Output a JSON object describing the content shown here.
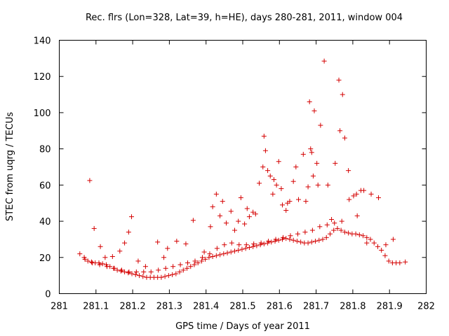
{
  "chart_data": {
    "type": "scatter",
    "title": "Rec. flrs (Lon=328, Lat=39, h=HE), days 280-281, 2011, window 004",
    "xlabel": "GPS time / Days of year 2011",
    "ylabel": "STEC from uqrg / TECUs",
    "xlim": [
      281,
      282
    ],
    "ylim": [
      0,
      140
    ],
    "xticks": [
      "281",
      "281.1",
      "281.2",
      "281.3",
      "281.4",
      "281.5",
      "281.6",
      "281.7",
      "281.8",
      "281.9",
      "282"
    ],
    "yticks": [
      "0",
      "20",
      "40",
      "60",
      "80",
      "100",
      "120",
      "140"
    ],
    "grid": false,
    "legend": "none",
    "marker": "+",
    "color": "#d40000",
    "series": [
      {
        "x": [
          281.056,
          281.068,
          281.078,
          281.088,
          281.098,
          281.108,
          281.118,
          281.128,
          281.138,
          281.148,
          281.158,
          281.168,
          281.178,
          281.188,
          281.198,
          281.208,
          281.218,
          281.228,
          281.238,
          281.248,
          281.258,
          281.268,
          281.278,
          281.288,
          281.298,
          281.308,
          281.318,
          281.328,
          281.338,
          281.348,
          281.358,
          281.368,
          281.378,
          281.388,
          281.398,
          281.408,
          281.418,
          281.428,
          281.438,
          281.448,
          281.458,
          281.468,
          281.478,
          281.488,
          281.498,
          281.508,
          281.518,
          281.528,
          281.538,
          281.548,
          281.558,
          281.568,
          281.578,
          281.588,
          281.598,
          281.608,
          281.618,
          281.628,
          281.638,
          281.648,
          281.658,
          281.668,
          281.678,
          281.688,
          281.698,
          281.708,
          281.718,
          281.728,
          281.738,
          281.748,
          281.758,
          281.768,
          281.778,
          281.788,
          281.798,
          281.808,
          281.818,
          281.828,
          281.838,
          281.848,
          281.858,
          281.868,
          281.878,
          281.888,
          281.898,
          281.908,
          281.918,
          281.928,
          281.943
        ],
        "y": [
          22,
          20,
          18,
          17.5,
          17,
          17,
          16.5,
          16,
          15,
          14,
          13,
          12.5,
          12,
          11.5,
          11,
          10.5,
          10,
          9.5,
          9,
          9,
          9,
          9,
          9,
          9.5,
          10,
          10.5,
          11,
          12,
          13,
          14,
          15,
          16,
          17,
          18,
          19,
          20,
          20.5,
          21,
          21.5,
          22,
          22.5,
          23,
          23.5,
          24,
          24.5,
          25,
          25.5,
          26,
          26.5,
          27,
          27.5,
          28,
          28.5,
          29,
          29.5,
          30,
          30.5,
          30,
          29.5,
          29,
          28.5,
          28,
          28,
          28.5,
          29,
          29.5,
          30,
          31,
          33,
          35,
          36,
          35,
          34,
          33.5,
          33,
          33,
          32.5,
          32,
          31,
          30,
          28,
          26,
          24,
          21,
          18,
          17,
          17,
          17,
          17.5
        ]
      },
      {
        "x": [
          281.07,
          281.09,
          281.11,
          281.13,
          281.15,
          281.17,
          281.19,
          281.21,
          281.23,
          281.25,
          281.27,
          281.29,
          281.31,
          281.33,
          281.35,
          281.37,
          281.39,
          281.41,
          281.43,
          281.45,
          281.47,
          281.49,
          281.51,
          281.53,
          281.55,
          281.57,
          281.59,
          281.61,
          281.63,
          281.65,
          281.67,
          281.69,
          281.71,
          281.73,
          281.75,
          281.77,
          281.79,
          281.81,
          281.83,
          281.85,
          281.87,
          281.89,
          281.91
        ],
        "y": [
          19,
          17,
          16,
          15,
          14,
          13,
          12,
          12,
          12,
          12,
          13,
          14,
          15,
          16,
          17,
          18,
          20,
          22,
          25,
          27,
          28,
          27,
          27,
          27.5,
          28,
          29,
          30,
          31,
          32,
          33,
          34,
          35,
          37,
          38,
          39,
          40,
          52,
          55,
          57,
          55,
          53,
          27,
          30
        ]
      },
      {
        "x": [
          281.083,
          281.095,
          281.112,
          281.125,
          281.145,
          281.165,
          281.178,
          281.189,
          281.197,
          281.215,
          281.235,
          281.268,
          281.285,
          281.295,
          281.32,
          281.345,
          281.365,
          281.395,
          281.412,
          281.418,
          281.428,
          281.438,
          281.445,
          281.455,
          281.468,
          281.478,
          281.488,
          281.495,
          281.505,
          281.512,
          281.518,
          281.528,
          281.535,
          281.545,
          281.555,
          281.558,
          281.562,
          281.568,
          281.575,
          281.582,
          281.585,
          281.592,
          281.598,
          281.605,
          281.608,
          281.618,
          281.622,
          281.628,
          281.638,
          281.645,
          281.652,
          281.665,
          281.672,
          281.678,
          281.682,
          281.685,
          281.688,
          281.692,
          281.695,
          281.702,
          281.705,
          281.712,
          281.722,
          281.732,
          281.742,
          281.752,
          281.762,
          281.765,
          281.772,
          281.778,
          281.788,
          281.802,
          281.812,
          281.822,
          281.838
        ],
        "y": [
          62.5,
          36,
          26,
          20,
          20.5,
          23.5,
          28,
          34,
          42.5,
          18,
          15,
          28.5,
          20,
          25,
          29,
          27.5,
          40.5,
          23,
          37,
          48,
          55,
          43,
          51,
          39,
          45.5,
          35,
          40,
          53,
          38.5,
          47,
          42.5,
          45,
          44,
          61,
          70,
          87,
          79,
          68,
          65,
          55,
          63,
          60,
          73,
          58,
          49,
          46,
          50,
          51,
          62,
          70,
          52,
          77,
          51,
          59,
          106,
          80,
          78,
          65,
          101,
          72,
          60,
          93,
          128.5,
          60,
          41,
          72,
          118,
          90,
          110,
          86,
          68,
          54,
          43,
          57,
          28
        ]
      }
    ]
  }
}
